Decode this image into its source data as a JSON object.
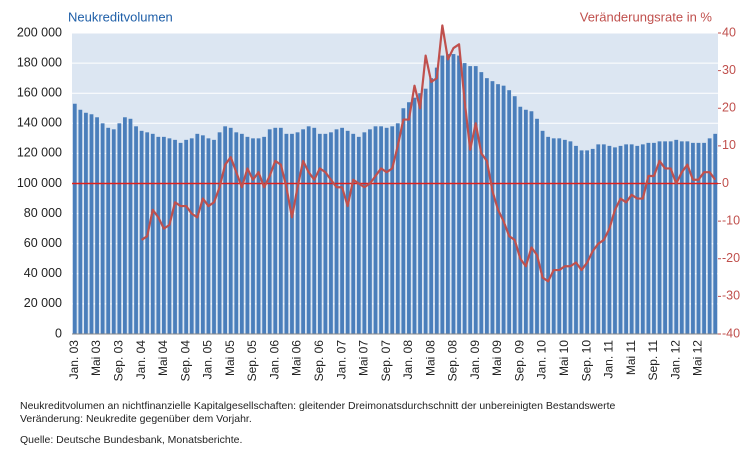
{
  "chart_data": {
    "type": "bar",
    "categories": [
      "Jan. 03",
      null,
      null,
      null,
      "Mai 03",
      null,
      null,
      null,
      "Sep. 03",
      null,
      null,
      null,
      "Jan. 04",
      null,
      null,
      null,
      "Mai 04",
      null,
      null,
      null,
      "Sep. 04",
      null,
      null,
      null,
      "Jan. 05",
      null,
      null,
      null,
      "Mai 05",
      null,
      null,
      null,
      "Sep. 05",
      null,
      null,
      null,
      "Jan. 06",
      null,
      null,
      null,
      "Mai 06",
      null,
      null,
      null,
      "Sep. 06",
      null,
      null,
      null,
      "Jan. 07",
      null,
      null,
      null,
      "Mai 07",
      null,
      null,
      null,
      "Sep. 07",
      null,
      null,
      null,
      "Jan. 08",
      null,
      null,
      null,
      "Mai 08",
      null,
      null,
      null,
      "Sep. 08",
      null,
      null,
      null,
      "Jan. 09",
      null,
      null,
      null,
      "Mai 09",
      null,
      null,
      null,
      "Sep. 09",
      null,
      null,
      null,
      "Jan. 10",
      null,
      null,
      null,
      "Mai 10",
      null,
      null,
      null,
      "Sep. 10",
      null,
      null,
      null,
      "Jan. 11",
      null,
      null,
      null,
      "Mai 11",
      null,
      null,
      null,
      "Sep. 11",
      null,
      null,
      null,
      "Jan. 12",
      null,
      null,
      null,
      "Mai 12",
      null,
      null,
      null
    ],
    "series": [
      {
        "name": "Neukreditvolumen",
        "type": "bar",
        "axis": "y",
        "color": "#4a7ebb",
        "values": [
          153000,
          149000,
          147000,
          146000,
          144000,
          140000,
          137000,
          136000,
          140000,
          144000,
          143000,
          138000,
          135000,
          134000,
          133000,
          131000,
          131000,
          130000,
          129000,
          127000,
          129000,
          130000,
          133000,
          132000,
          130000,
          129000,
          134000,
          138000,
          137000,
          134000,
          133000,
          131000,
          130000,
          130000,
          131000,
          136000,
          137000,
          137000,
          133000,
          133000,
          134000,
          136000,
          138000,
          137000,
          133000,
          133000,
          134000,
          136000,
          137000,
          135000,
          133000,
          131000,
          134000,
          136000,
          138000,
          138000,
          137000,
          138000,
          140000,
          150000,
          154000,
          157000,
          160000,
          163000,
          170000,
          177000,
          185000,
          186000,
          186000,
          185000,
          180000,
          178000,
          178000,
          174000,
          170000,
          168000,
          166000,
          165000,
          162000,
          158000,
          151000,
          149000,
          148000,
          143000,
          135000,
          131000,
          130000,
          130000,
          129000,
          128000,
          125000,
          122000,
          122000,
          123000,
          126000,
          126000,
          125000,
          124000,
          125000,
          126000,
          126000,
          125000,
          126000,
          127000,
          127000,
          128000,
          128000,
          128000,
          129000,
          128000,
          128000,
          127000,
          127000,
          127000,
          130000,
          133000
        ]
      },
      {
        "name": "Veränderungsrate in %",
        "type": "line",
        "axis": "y2",
        "color": "#c0504d",
        "values": [
          null,
          null,
          null,
          null,
          null,
          null,
          null,
          null,
          null,
          null,
          null,
          null,
          -15,
          -14,
          -7,
          -9,
          -12,
          -11,
          -5,
          -6,
          -6,
          -8,
          -9,
          -4,
          -6,
          -5,
          -1,
          5,
          7,
          3,
          -1,
          4,
          1,
          3,
          -1,
          2,
          6,
          5,
          -1,
          -9,
          -1,
          6,
          3,
          1,
          4,
          3,
          1,
          -1,
          -1,
          -6,
          1,
          0,
          -1,
          0,
          2,
          4,
          3,
          4,
          10,
          17,
          17,
          26,
          20,
          34,
          27,
          28,
          42,
          33,
          36,
          37,
          22,
          9,
          16,
          8,
          6,
          -2,
          -7,
          -10,
          -14,
          -15,
          -20,
          -22,
          -17,
          -19,
          -25,
          -26,
          -23,
          -23,
          -22,
          -22,
          -21,
          -23,
          -21,
          -18,
          -16,
          -15,
          -12,
          -7,
          -4,
          -5,
          -3,
          -4,
          -4,
          2,
          2,
          6,
          4,
          4,
          0,
          3,
          5,
          1,
          1,
          3,
          3,
          1
        ]
      }
    ],
    "ylim": [
      0,
      200000
    ],
    "yticks": [
      0,
      {
        "value": 20000,
        "label": "20 000"
      },
      {
        "value": 40000,
        "label": "40 000"
      },
      {
        "value": 60000,
        "label": "60 000"
      },
      {
        "value": 80000,
        "label": "80 000"
      },
      {
        "value": 100000,
        "label": "100 000"
      },
      {
        "value": 120000,
        "label": "120 000"
      },
      {
        "value": 140000,
        "label": "140 000"
      },
      {
        "value": 160000,
        "label": "160 000"
      },
      {
        "value": 180000,
        "label": "180 000"
      },
      {
        "value": 200000,
        "label": "200 000"
      }
    ],
    "y2lim": [
      -40,
      40
    ],
    "y2ticks": [
      40,
      30,
      20,
      10,
      0,
      -10,
      -20,
      -30,
      -40
    ],
    "grid": true,
    "zero_line_color": "#e0201b",
    "notes": [
      "Neukreditvolumen an nichtfinanzielle Kapitalgesellschaften: gleitender Dreimonatsdurchschnitt der unbereinigten Bestandswerte",
      "Veränderung: Neukredite gegenüber dem Vorjahr."
    ],
    "source": "Quelle: Deutsche Bundesbank, Monatsberichte."
  }
}
